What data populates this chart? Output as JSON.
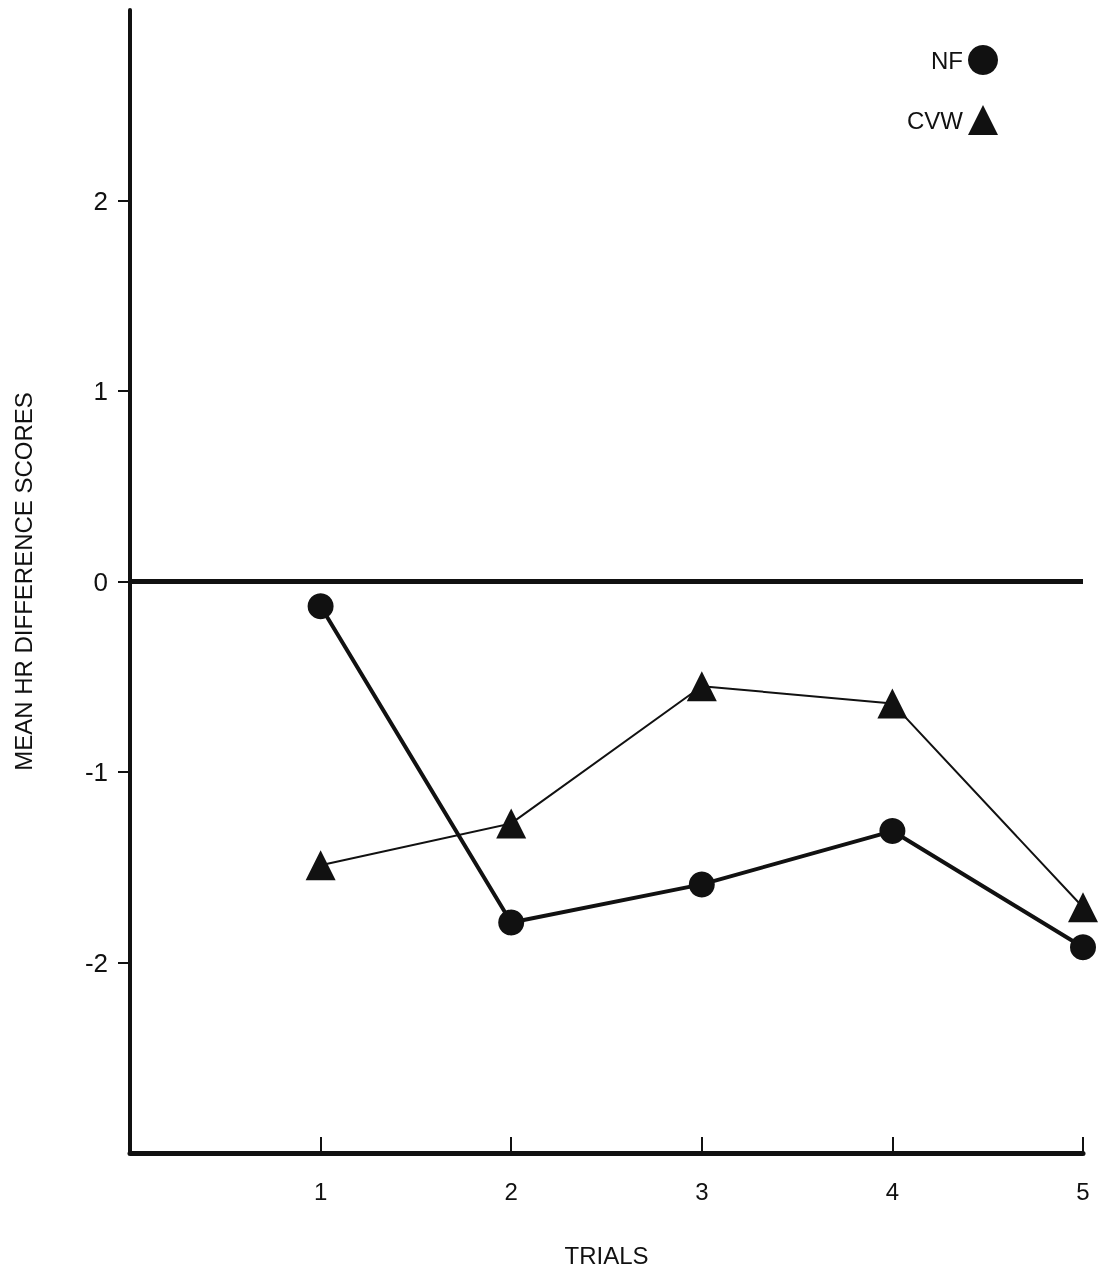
{
  "chart_data": {
    "type": "line",
    "xlabel": "TRIALS",
    "ylabel": "MEAN HR DIFFERENCE SCORES",
    "x": [
      1,
      2,
      3,
      4,
      5
    ],
    "series": [
      {
        "name": "NF",
        "color": "#111111",
        "marker": "circle",
        "values": [
          -0.13,
          -1.79,
          -1.59,
          -1.31,
          -1.92
        ]
      },
      {
        "name": "CVW",
        "color": "#111111",
        "marker": "triangle",
        "values": [
          -1.49,
          -1.27,
          -0.55,
          -0.64,
          -1.71
        ]
      }
    ],
    "xlim": [
      0,
      5
    ],
    "xticks": [
      1,
      2,
      3,
      4,
      5
    ],
    "ylim": [
      -3,
      3
    ],
    "yticks": [
      -2,
      -1,
      0,
      1,
      2
    ],
    "ref_lines": [
      {
        "axis": "y",
        "value": 0,
        "color": "#111111"
      }
    ],
    "grid": false,
    "legend": "top right",
    "line_style": "solid"
  }
}
